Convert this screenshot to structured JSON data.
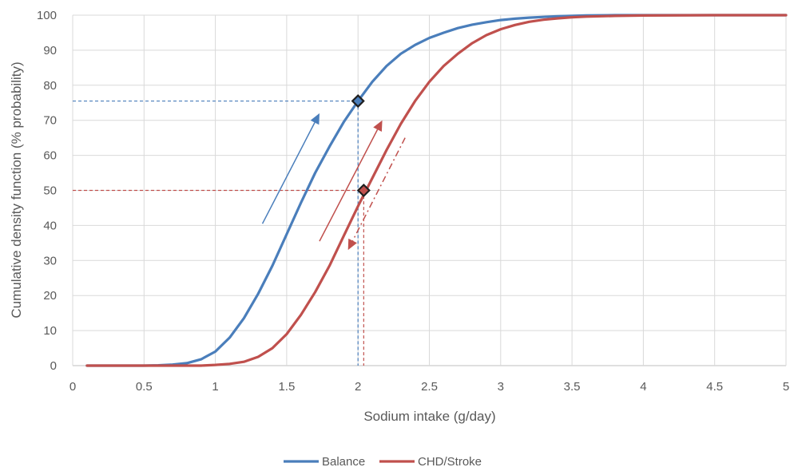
{
  "chart_data": {
    "type": "line",
    "xlabel": "Sodium intake (g/day)",
    "ylabel": "Cumulative density function (% probability)",
    "xlim": [
      0,
      5
    ],
    "ylim": [
      0,
      100
    ],
    "x_ticks": [
      "0",
      "0.5",
      "1",
      "1.5",
      "2",
      "2.5",
      "3",
      "3.5",
      "4",
      "4.5",
      "5"
    ],
    "y_ticks": [
      "0",
      "10",
      "20",
      "30",
      "40",
      "50",
      "60",
      "70",
      "80",
      "90",
      "100"
    ],
    "grid": true,
    "legend_position": "bottom",
    "series": [
      {
        "name": "Balance",
        "color": "#4a7ebb",
        "x": [
          0.1,
          0.2,
          0.3,
          0.4,
          0.5,
          0.6,
          0.7,
          0.8,
          0.9,
          1.0,
          1.1,
          1.2,
          1.3,
          1.4,
          1.5,
          1.6,
          1.7,
          1.8,
          1.9,
          2.0,
          2.1,
          2.2,
          2.3,
          2.4,
          2.5,
          2.6,
          2.7,
          2.8,
          2.9,
          3.0,
          3.1,
          3.2,
          3.3,
          3.4,
          3.5,
          3.6,
          3.8,
          4.0,
          4.5,
          5.0
        ],
        "values": [
          0,
          0,
          0,
          0,
          0,
          0.1,
          0.3,
          0.7,
          1.8,
          4.0,
          8.0,
          13.5,
          20.5,
          28.5,
          37.5,
          46.5,
          55.0,
          62.5,
          69.5,
          75.5,
          81.0,
          85.5,
          89.0,
          91.5,
          93.5,
          95.0,
          96.3,
          97.3,
          98.0,
          98.6,
          99.0,
          99.3,
          99.5,
          99.7,
          99.8,
          99.9,
          100,
          100,
          100,
          100
        ]
      },
      {
        "name": "CHD/Stroke",
        "color": "#c0504d",
        "x": [
          0.1,
          0.2,
          0.3,
          0.4,
          0.5,
          0.6,
          0.7,
          0.8,
          0.9,
          1.0,
          1.1,
          1.2,
          1.3,
          1.4,
          1.5,
          1.6,
          1.7,
          1.8,
          1.9,
          2.0,
          2.1,
          2.2,
          2.3,
          2.4,
          2.5,
          2.6,
          2.7,
          2.8,
          2.9,
          3.0,
          3.1,
          3.2,
          3.3,
          3.4,
          3.5,
          3.6,
          3.8,
          4.0,
          4.5,
          5.0
        ],
        "values": [
          0,
          0,
          0,
          0,
          0,
          0,
          0,
          0,
          0,
          0.2,
          0.5,
          1.1,
          2.5,
          5.0,
          9.0,
          14.5,
          21.0,
          28.5,
          37.0,
          45.5,
          53.5,
          61.5,
          69.0,
          75.5,
          81.0,
          85.5,
          89.0,
          92.0,
          94.3,
          96.0,
          97.2,
          98.1,
          98.7,
          99.1,
          99.4,
          99.6,
          99.8,
          99.9,
          100,
          100
        ]
      }
    ],
    "markers": [
      {
        "series": "Balance",
        "x": 2.0,
        "y": 75.5,
        "color": "#4a7ebb"
      },
      {
        "series": "CHD/Stroke",
        "x": 2.04,
        "y": 50,
        "color": "#c0504d"
      }
    ],
    "reference_lines": [
      {
        "color": "#4a7ebb",
        "points": [
          [
            0,
            75.5
          ],
          [
            2.0,
            75.5
          ],
          [
            2.0,
            0
          ]
        ]
      },
      {
        "color": "#c0504d",
        "points": [
          [
            0,
            50
          ],
          [
            2.04,
            50
          ],
          [
            2.04,
            0
          ]
        ]
      }
    ],
    "arrows": [
      {
        "color": "#4a7ebb",
        "style": "solid",
        "from": [
          1.33,
          40.5
        ],
        "to": [
          1.73,
          72
        ]
      },
      {
        "color": "#c0504d",
        "style": "solid",
        "from": [
          1.73,
          35.5
        ],
        "to": [
          2.17,
          70
        ]
      },
      {
        "color": "#c0504d",
        "style": "dashdot",
        "from": [
          2.33,
          65
        ],
        "to": [
          1.93,
          33
        ]
      }
    ]
  }
}
